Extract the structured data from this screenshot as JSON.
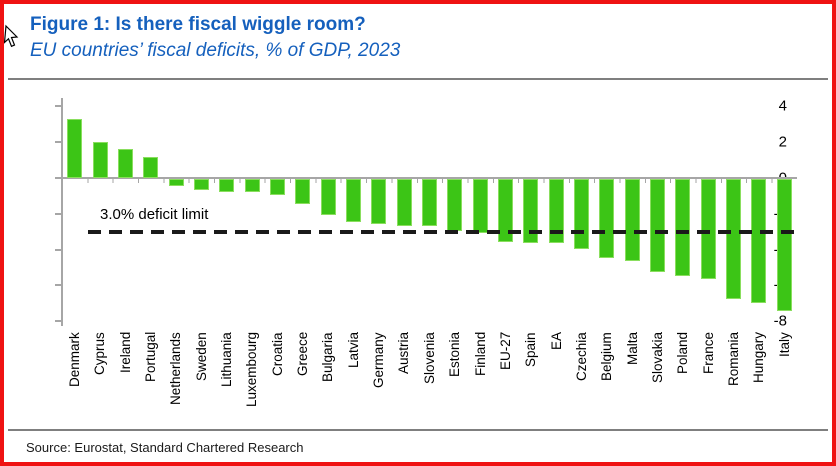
{
  "frame": {
    "border_color": "#ef1212"
  },
  "header": {
    "title": "Figure 1: Is there fiscal wiggle room?",
    "subtitle": "EU countries’ fiscal deficits, % of GDP, 2023",
    "accent_color": "#1560bd"
  },
  "footer": {
    "source": "Source: Eurostat, Standard Chartered Research"
  },
  "icons": {
    "cursor": "mouse-cursor"
  },
  "chart_data": {
    "type": "bar",
    "title": "Figure 1: Is there fiscal wiggle room?",
    "subtitle": "EU countries’ fiscal deficits, % of GDP, 2023",
    "categories": [
      "Denmark",
      "Cyprus",
      "Ireland",
      "Portugal",
      "Netherlands",
      "Sweden",
      "Lithuania",
      "Luxembourg",
      "Croatia",
      "Greece",
      "Bulgaria",
      "Latvia",
      "Germany",
      "Austria",
      "Slovenia",
      "Estonia",
      "Finland",
      "EU-27",
      "Spain",
      "EA",
      "Czechia",
      "Belgium",
      "Malta",
      "Slovakia",
      "Poland",
      "France",
      "Romania",
      "Hungary",
      "Italy"
    ],
    "values": [
      3.3,
      2.0,
      1.6,
      1.2,
      -0.4,
      -0.6,
      -0.7,
      -0.7,
      -0.9,
      -1.4,
      -2.0,
      -2.4,
      -2.5,
      -2.6,
      -2.6,
      -2.9,
      -3.0,
      -3.5,
      -3.6,
      -3.6,
      -3.9,
      -4.4,
      -4.6,
      -5.2,
      -5.4,
      -5.6,
      -6.7,
      -6.9,
      -7.4
    ],
    "xlabel": "",
    "ylabel": "",
    "ylim": [
      -8,
      4
    ],
    "yticks": [
      4,
      2,
      0,
      -2,
      -4,
      -6,
      -8
    ],
    "grid": false,
    "legend": false,
    "bar_color": "#3cc516",
    "reference_line": {
      "value": -3.0,
      "label": "3.0% deficit limit",
      "style": "dashed",
      "color": "#1a1a1a"
    },
    "source": "Source: Eurostat, Standard Chartered Research"
  }
}
